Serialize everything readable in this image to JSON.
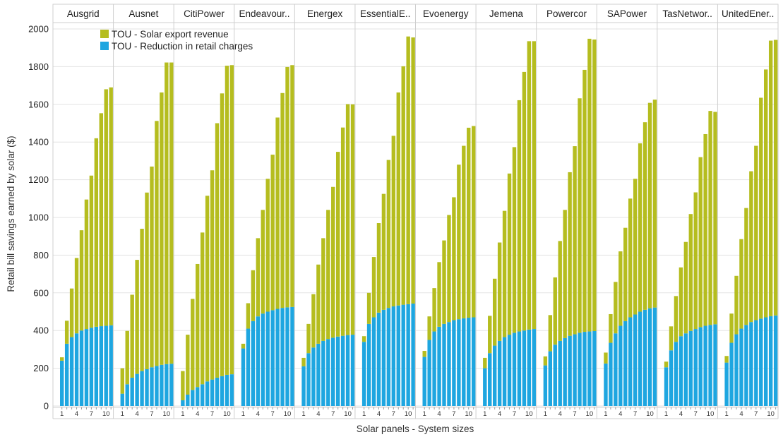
{
  "chart_data": {
    "type": "bar",
    "stacked": true,
    "xlabel": "Solar panels - System sizes",
    "ylabel": "Retail bill savings earned by solar ($)",
    "ylim": [
      0,
      2000
    ],
    "yticks": [
      0,
      200,
      400,
      600,
      800,
      1000,
      1200,
      1400,
      1600,
      1800,
      2000
    ],
    "x": [
      1,
      2,
      3,
      4,
      5,
      6,
      7,
      8,
      9,
      10,
      11
    ],
    "xtick_labels": [
      "1",
      "4",
      "7",
      "10"
    ],
    "grid": true,
    "legend": {
      "position": "top-left",
      "entries": [
        "TOU - Solar export revenue",
        "TOU - Reduction in retail charges"
      ]
    },
    "colors": {
      "export": "#b5bd1f",
      "reduction": "#1ea6e0",
      "grid": "#e3e3e3",
      "divider": "#cfcfcf"
    },
    "panels": [
      {
        "title": "Ausgrid",
        "series": [
          {
            "name": "TOU - Reduction in retail charges",
            "values": [
              240,
              330,
              365,
              385,
              400,
              408,
              415,
              420,
              423,
              425,
              428
            ]
          },
          {
            "name": "TOU - Solar export revenue",
            "values": [
              18,
              122,
              258,
              400,
              532,
              687,
              807,
              1000,
              1130,
              1255,
              1262
            ]
          }
        ]
      },
      {
        "title": "Ausnet",
        "series": [
          {
            "name": "TOU - Reduction in retail charges",
            "values": [
              65,
              115,
              150,
              170,
              185,
              195,
              205,
              212,
              218,
              222,
              224
            ]
          },
          {
            "name": "TOU - Solar export revenue",
            "values": [
              135,
              283,
              440,
              605,
              755,
              937,
              1065,
              1300,
              1445,
              1600,
              1598
            ]
          }
        ]
      },
      {
        "title": "CitiPower",
        "series": [
          {
            "name": "TOU - Reduction in retail charges",
            "values": [
              30,
              60,
              85,
              100,
              115,
              130,
              140,
              150,
              158,
              165,
              168
            ]
          },
          {
            "name": "TOU - Solar export revenue",
            "values": [
              155,
              318,
              483,
              653,
              805,
              985,
              1110,
              1350,
              1500,
              1640,
              1640
            ]
          }
        ]
      },
      {
        "title": "Endeavour..",
        "series": [
          {
            "name": "TOU - Reduction in retail charges",
            "values": [
              305,
              410,
              450,
              475,
              490,
              500,
              508,
              515,
              520,
              523,
              525
            ]
          },
          {
            "name": "TOU - Solar export revenue",
            "values": [
              25,
              135,
              270,
              415,
              550,
              705,
              825,
              1015,
              1140,
              1275,
              1283
            ]
          }
        ]
      },
      {
        "title": "Energex",
        "series": [
          {
            "name": "TOU - Reduction in retail charges",
            "values": [
              210,
              280,
              310,
              330,
              345,
              355,
              362,
              368,
              372,
              376,
              378
            ]
          },
          {
            "name": "TOU - Solar export revenue",
            "values": [
              45,
              155,
              283,
              420,
              545,
              685,
              800,
              980,
              1105,
              1225,
              1222
            ]
          }
        ]
      },
      {
        "title": "EssentialE..",
        "series": [
          {
            "name": "TOU - Reduction in retail charges",
            "values": [
              340,
              435,
              470,
              495,
              510,
              520,
              528,
              533,
              537,
              540,
              543
            ]
          },
          {
            "name": "TOU - Solar export revenue",
            "values": [
              30,
              165,
              320,
              475,
              615,
              785,
              905,
              1130,
              1265,
              1420,
              1412
            ]
          }
        ]
      },
      {
        "title": "Evoenergy",
        "series": [
          {
            "name": "TOU - Reduction in retail charges",
            "values": [
              260,
              350,
              395,
              420,
              435,
              445,
              455,
              460,
              465,
              468,
              470
            ]
          },
          {
            "name": "TOU - Solar export revenue",
            "values": [
              32,
              125,
              230,
              343,
              443,
              568,
              652,
              820,
              915,
              1008,
              1015
            ]
          }
        ]
      },
      {
        "title": "Jemena",
        "series": [
          {
            "name": "TOU - Reduction in retail charges",
            "values": [
              200,
              280,
              320,
              345,
              365,
              378,
              388,
              395,
              400,
              405,
              408
            ]
          },
          {
            "name": "TOU - Solar export revenue",
            "values": [
              55,
              198,
              355,
              522,
              670,
              855,
              985,
              1227,
              1372,
              1530,
              1527
            ]
          }
        ]
      },
      {
        "title": "Powercor",
        "series": [
          {
            "name": "TOU - Reduction in retail charges",
            "values": [
              215,
              290,
              325,
              345,
              360,
              372,
              380,
              388,
              393,
              395,
              397
            ]
          },
          {
            "name": "TOU - Solar export revenue",
            "values": [
              48,
              192,
              357,
              530,
              680,
              868,
              998,
              1244,
              1390,
              1553,
              1547
            ]
          }
        ]
      },
      {
        "title": "SAPower",
        "series": [
          {
            "name": "TOU - Reduction in retail charges",
            "values": [
              225,
              335,
              385,
              425,
              450,
              470,
              485,
              500,
              510,
              518,
              522
            ]
          },
          {
            "name": "TOU - Solar export revenue",
            "values": [
              58,
              152,
              273,
              395,
              495,
              630,
              720,
              893,
              995,
              1090,
              1103
            ]
          }
        ]
      },
      {
        "title": "TasNetwor..",
        "series": [
          {
            "name": "TOU - Reduction in retail charges",
            "values": [
              205,
              295,
              340,
              370,
              385,
              398,
              408,
              418,
              425,
              430,
              433
            ]
          },
          {
            "name": "TOU - Solar export revenue",
            "values": [
              30,
              127,
              243,
              365,
              485,
              620,
              725,
              902,
              1017,
              1135,
              1127
            ]
          }
        ]
      },
      {
        "title": "UnitedEner..",
        "series": [
          {
            "name": "TOU - Reduction in retail charges",
            "values": [
              230,
              335,
              380,
              410,
              430,
              445,
              455,
              463,
              470,
              476,
              480
            ]
          },
          {
            "name": "TOU - Solar export revenue",
            "values": [
              35,
              155,
              310,
              475,
              620,
              800,
              925,
              1172,
              1315,
              1462,
              1462
            ]
          }
        ]
      }
    ]
  }
}
